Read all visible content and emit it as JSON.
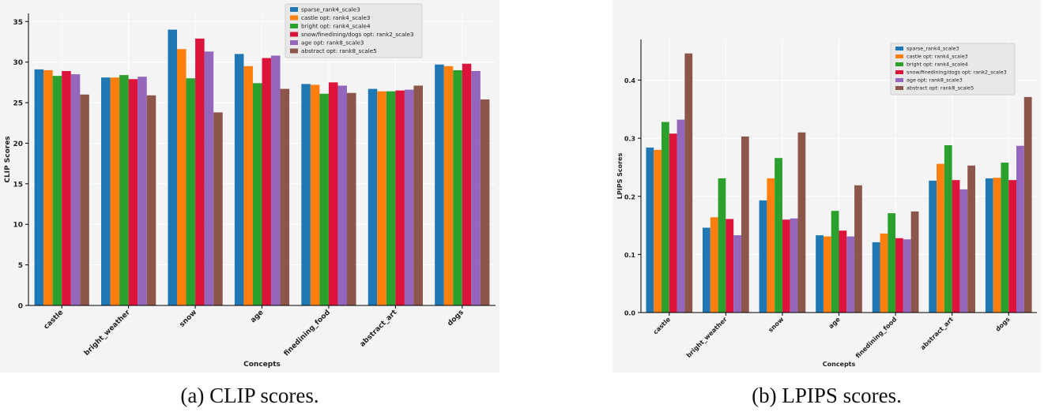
{
  "colors": {
    "series": [
      "#1f77b4",
      "#ff7f0e",
      "#2ca02c",
      "#dc143c",
      "#9467bd",
      "#8c564b"
    ],
    "panel_background": "#f4f4f4",
    "plot_background": "#f4f4f4",
    "grid": "#ffffff"
  },
  "captions": {
    "left": "(a) CLIP scores.",
    "right": "(b) LPIPS scores."
  },
  "chart_data": [
    {
      "type": "bar",
      "title": "",
      "xlabel": "Concepts",
      "ylabel": "CLIP Scores",
      "ylim": [
        0,
        36
      ],
      "yticks": [
        0,
        5,
        10,
        15,
        20,
        25,
        30,
        35
      ],
      "ytick_labels": [
        "0",
        "5",
        "10",
        "15",
        "20",
        "25",
        "30",
        "35"
      ],
      "grid": true,
      "legend_position": "top-center",
      "categories": [
        "castle",
        "bright_weather",
        "snow",
        "age",
        "finedining_food",
        "abstract_art",
        "dogs"
      ],
      "series": [
        {
          "name": "sparse_rank4_scale3",
          "values": [
            29.1,
            28.1,
            34.0,
            31.0,
            27.3,
            26.7,
            29.7
          ]
        },
        {
          "name": "castle opt: rank4_scale3",
          "values": [
            29.0,
            28.1,
            31.6,
            29.5,
            27.2,
            26.4,
            29.5
          ]
        },
        {
          "name": "bright opt: rank4_scale4",
          "values": [
            28.3,
            28.4,
            28.0,
            27.4,
            26.1,
            26.4,
            29.0
          ]
        },
        {
          "name": "snow/finedining/dogs opt: rank2_scale3",
          "values": [
            28.9,
            27.9,
            32.9,
            30.5,
            27.5,
            26.5,
            29.8
          ]
        },
        {
          "name": "age opt: rank8_scale3",
          "values": [
            28.5,
            28.2,
            31.3,
            30.8,
            27.1,
            26.6,
            28.9
          ]
        },
        {
          "name": "abstract opt: rank8_scale5",
          "values": [
            26.0,
            25.9,
            23.8,
            26.7,
            26.2,
            27.1,
            25.4
          ]
        }
      ]
    },
    {
      "type": "bar",
      "title": "",
      "xlabel": "Concepts",
      "ylabel": "LPIPS Scores",
      "ylim": [
        0,
        0.47
      ],
      "yticks": [
        0.0,
        0.1,
        0.2,
        0.3,
        0.4
      ],
      "ytick_labels": [
        "0.0",
        "0.1",
        "0.2",
        "0.3",
        "0.4"
      ],
      "grid": true,
      "legend_position": "top-right",
      "categories": [
        "castle",
        "bright_weather",
        "snow",
        "age",
        "finedining_food",
        "abstract_art",
        "dogs"
      ],
      "series": [
        {
          "name": "sparse_rank4_scale3",
          "values": [
            0.284,
            0.146,
            0.193,
            0.133,
            0.121,
            0.227,
            0.231
          ]
        },
        {
          "name": "castle opt: rank4_scale3",
          "values": [
            0.28,
            0.164,
            0.231,
            0.131,
            0.136,
            0.256,
            0.232
          ]
        },
        {
          "name": "bright opt: rank4_scale4",
          "values": [
            0.328,
            0.231,
            0.266,
            0.175,
            0.171,
            0.288,
            0.258
          ]
        },
        {
          "name": "snow/finedining/dogs opt: rank2_scale3",
          "values": [
            0.308,
            0.161,
            0.16,
            0.141,
            0.128,
            0.228,
            0.228
          ]
        },
        {
          "name": "age opt: rank8_scale3",
          "values": [
            0.332,
            0.133,
            0.162,
            0.131,
            0.126,
            0.212,
            0.287
          ]
        },
        {
          "name": "abstract opt: rank8_scale5",
          "values": [
            0.446,
            0.303,
            0.31,
            0.219,
            0.174,
            0.253,
            0.371
          ]
        }
      ]
    }
  ]
}
